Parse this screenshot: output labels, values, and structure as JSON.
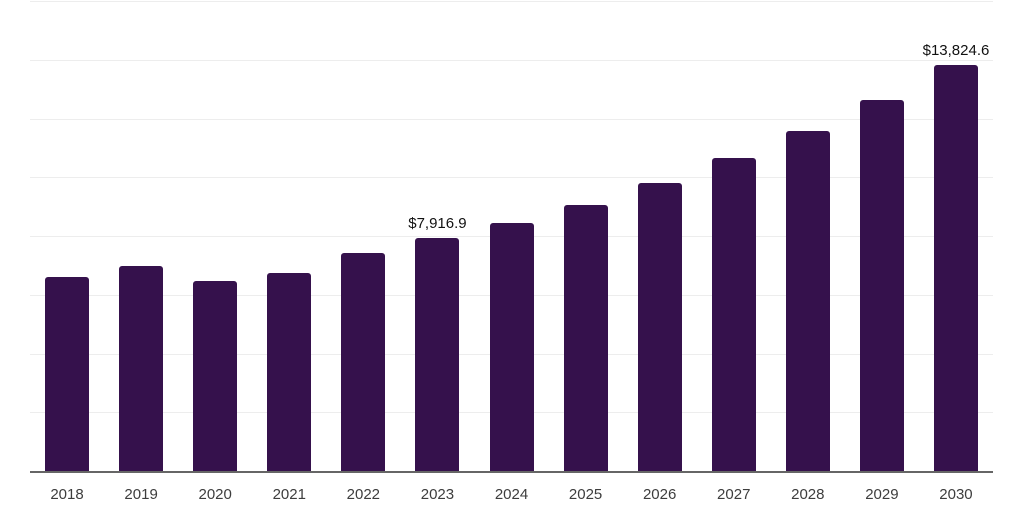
{
  "chart_data": {
    "type": "bar",
    "title": "",
    "xlabel": "",
    "ylabel": "",
    "categories": [
      "2018",
      "2019",
      "2020",
      "2021",
      "2022",
      "2023",
      "2024",
      "2025",
      "2026",
      "2027",
      "2028",
      "2029",
      "2030"
    ],
    "values": [
      6600,
      6980,
      6470,
      6740,
      7420,
      7916.9,
      8440,
      9050,
      9800,
      10660,
      11570,
      12630,
      13824.6
    ],
    "data_labels": [
      "",
      "",
      "",
      "",
      "",
      "$7,916.9",
      "",
      "",
      "",
      "",
      "",
      "",
      "$13,824.6"
    ],
    "values_note": "Only the 2023 ($7,916.9) and 2030 ($13,824.6) bars carry visible data labels; all other values are estimated from bar heights against the gridlines",
    "ylim": [
      0,
      16000
    ],
    "gridline_step": 2000,
    "grid": "horizontal gridlines on, no y-axis tick labels",
    "legend": "none",
    "colors": {
      "bar": "#35114C",
      "axis_line": "#666666",
      "gridline": "#EDEDED",
      "x_label_text": "#3D3D3D",
      "data_label_text": "#111111",
      "background": "#FFFFFF"
    }
  }
}
